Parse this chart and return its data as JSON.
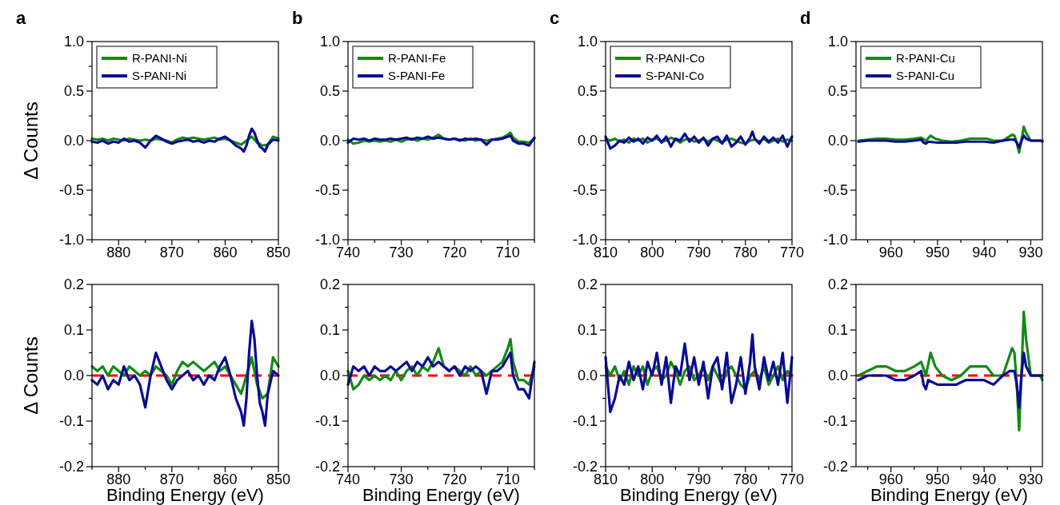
{
  "chart_data": [
    {
      "type": "line",
      "title": "a",
      "ylabel": "Δ Counts",
      "legend": "top left",
      "xlim": [
        885,
        850
      ],
      "xticks": [
        {
          "value": 885,
          "label": null
        },
        880,
        {
          "value": 875,
          "label": null
        },
        870,
        {
          "value": 865,
          "label": null
        },
        860,
        {
          "value": 855,
          "label": null
        },
        850
      ],
      "ylim": [
        -1,
        1
      ],
      "yticks": [
        {
          "value": -1,
          "label": "-1.0"
        },
        {
          "value": -0.75,
          "label": null
        },
        {
          "value": -0.5,
          "label": "-0.5"
        },
        {
          "value": -0.25,
          "label": null
        },
        {
          "value": 0,
          "label": "0.0"
        },
        {
          "value": 0.25,
          "label": null
        },
        {
          "value": 0.5,
          "label": "0.5"
        },
        {
          "value": 0.75,
          "label": null
        },
        {
          "value": 1,
          "label": "1.0"
        }
      ],
      "series": [
        {
          "name": "R-PANI-Ni",
          "color": "#138a13",
          "x": [
            885,
            884,
            883,
            882,
            881,
            880,
            879,
            878,
            877,
            876,
            875,
            874,
            873,
            872,
            871,
            870,
            869,
            868,
            867,
            866,
            865,
            864,
            863,
            862,
            861,
            860,
            859,
            858,
            857,
            856,
            855,
            854,
            853,
            852,
            851,
            850
          ],
          "values": [
            0.02,
            0.01,
            0.02,
            0.0,
            0.02,
            0.01,
            0.0,
            0.02,
            0.01,
            0.0,
            0.01,
            0.0,
            0.02,
            0.01,
            0.0,
            -0.02,
            0.01,
            0.03,
            0.02,
            0.03,
            0.02,
            0.01,
            0.02,
            0.03,
            0.01,
            0.02,
            0.0,
            -0.02,
            -0.04,
            0.0,
            0.04,
            -0.02,
            -0.05,
            -0.04,
            0.04,
            0.02
          ]
        },
        {
          "name": "S-PANI-Ni",
          "color": "#0a0a96",
          "x": [
            885,
            884,
            883,
            882,
            881,
            880,
            879,
            878,
            877,
            876,
            875,
            874,
            873,
            872,
            871,
            870,
            869,
            868,
            867,
            866,
            865,
            864,
            863,
            862,
            861,
            860,
            859,
            858,
            857,
            856.5,
            856,
            855.5,
            855,
            854.5,
            854,
            853.5,
            853,
            852.5,
            852,
            851,
            850
          ],
          "values": [
            -0.01,
            -0.02,
            0.0,
            -0.03,
            -0.01,
            -0.02,
            0.02,
            -0.01,
            0.0,
            -0.02,
            -0.07,
            0.0,
            0.05,
            0.02,
            -0.01,
            -0.03,
            -0.01,
            0.0,
            0.01,
            -0.01,
            0.0,
            -0.02,
            0.0,
            -0.01,
            0.02,
            0.04,
            0.0,
            -0.05,
            -0.08,
            -0.11,
            -0.05,
            0.05,
            0.12,
            0.08,
            0.0,
            -0.06,
            -0.08,
            -0.11,
            -0.04,
            0.01,
            0.0
          ]
        }
      ]
    },
    {
      "type": "line",
      "title": "b",
      "legend": "top left",
      "xlim": [
        740,
        705
      ],
      "xticks": [
        740,
        {
          "value": 735,
          "label": null
        },
        730,
        {
          "value": 725,
          "label": null
        },
        720,
        {
          "value": 715,
          "label": null
        },
        710,
        {
          "value": 705,
          "label": null
        }
      ],
      "ylim": [
        -1,
        1
      ],
      "yticks": [
        {
          "value": -1,
          "label": "-1.0"
        },
        {
          "value": -0.75,
          "label": null
        },
        {
          "value": -0.5,
          "label": "-0.5"
        },
        {
          "value": -0.25,
          "label": null
        },
        {
          "value": 0,
          "label": "0.0"
        },
        {
          "value": 0.25,
          "label": null
        },
        {
          "value": 0.5,
          "label": "0.5"
        },
        {
          "value": 0.75,
          "label": null
        },
        {
          "value": 1,
          "label": "1.0"
        }
      ],
      "series": [
        {
          "name": "R-PANI-Fe",
          "color": "#138a13",
          "x": [
            740,
            739,
            738,
            737,
            736,
            735,
            734,
            733,
            732,
            731,
            730,
            729,
            728,
            727,
            726,
            725,
            724,
            723,
            722,
            721,
            720,
            719,
            718,
            717,
            716,
            715,
            714,
            713,
            712,
            711,
            710,
            709.5,
            709,
            708,
            707,
            706,
            705
          ],
          "values": [
            0.01,
            -0.03,
            -0.02,
            0.0,
            -0.01,
            0.0,
            -0.01,
            0.0,
            -0.01,
            0.01,
            -0.01,
            0.01,
            0.02,
            0.0,
            0.02,
            0.01,
            0.03,
            0.06,
            0.02,
            0.01,
            0.02,
            0.01,
            0.0,
            0.02,
            0.0,
            0.01,
            0.0,
            0.01,
            0.02,
            0.03,
            0.06,
            0.08,
            0.03,
            -0.01,
            -0.01,
            -0.02,
            0.02
          ]
        },
        {
          "name": "S-PANI-Fe",
          "color": "#0a0a96",
          "x": [
            740,
            739,
            738,
            737,
            736,
            735,
            734,
            733,
            732,
            731,
            730,
            729,
            728,
            727,
            726,
            725,
            724,
            723,
            722,
            721,
            720,
            719,
            718,
            717,
            716,
            715,
            714,
            713,
            712,
            711,
            710,
            709.5,
            709,
            708,
            707,
            706,
            705
          ],
          "values": [
            -0.02,
            0.02,
            0.01,
            0.02,
            0.0,
            0.02,
            0.01,
            0.01,
            0.02,
            0.01,
            0.02,
            0.03,
            0.01,
            0.03,
            0.02,
            0.04,
            0.02,
            0.03,
            0.02,
            0.01,
            0.02,
            0.0,
            0.02,
            0.01,
            0.02,
            0.01,
            -0.04,
            0.01,
            0.01,
            0.02,
            0.04,
            0.05,
            0.0,
            -0.03,
            -0.03,
            -0.05,
            0.03
          ]
        }
      ]
    },
    {
      "type": "line",
      "title": "c",
      "legend": "top left",
      "xlim": [
        810,
        770
      ],
      "xticks": [
        810,
        {
          "value": 805,
          "label": null
        },
        800,
        {
          "value": 795,
          "label": null
        },
        790,
        {
          "value": 785,
          "label": null
        },
        780,
        {
          "value": 775,
          "label": null
        },
        770
      ],
      "ylim": [
        -1,
        1
      ],
      "yticks": [
        {
          "value": -1,
          "label": "-1.0"
        },
        {
          "value": -0.75,
          "label": null
        },
        {
          "value": -0.5,
          "label": "-0.5"
        },
        {
          "value": -0.25,
          "label": null
        },
        {
          "value": 0,
          "label": "0.0"
        },
        {
          "value": 0.25,
          "label": null
        },
        {
          "value": 0.5,
          "label": "0.5"
        },
        {
          "value": 0.75,
          "label": null
        },
        {
          "value": 1,
          "label": "1.0"
        }
      ],
      "series": [
        {
          "name": "R-PANI-Co",
          "color": "#138a13",
          "x": [
            810,
            809,
            808,
            807,
            806,
            805,
            804,
            803,
            802,
            801,
            800,
            799,
            798,
            797,
            796,
            795,
            794,
            793,
            792,
            791,
            790,
            789,
            788,
            787,
            786,
            785,
            784,
            783,
            782,
            781,
            780,
            779,
            778,
            777,
            776,
            775,
            774,
            773,
            772,
            771,
            770
          ],
          "values": [
            0.02,
            0.0,
            0.02,
            -0.01,
            0.01,
            -0.02,
            0.02,
            0.0,
            0.02,
            -0.02,
            0.01,
            0.02,
            -0.01,
            0.0,
            0.03,
            0.01,
            -0.02,
            0.01,
            0.02,
            -0.01,
            0.0,
            0.02,
            -0.01,
            0.02,
            0.0,
            -0.02,
            0.01,
            0.02,
            0.0,
            -0.02,
            -0.03,
            0.0,
            0.01,
            -0.01,
            0.02,
            -0.02,
            0.0,
            0.02,
            -0.01,
            0.01,
            0.0
          ]
        },
        {
          "name": "S-PANI-Co",
          "color": "#0a0a96",
          "x": [
            810,
            809,
            808,
            807,
            806,
            805,
            804,
            803,
            802,
            801,
            800,
            799,
            798,
            797,
            796,
            795,
            794,
            793,
            792,
            791,
            790,
            789,
            788,
            787,
            786,
            785,
            784,
            783,
            782,
            781,
            780,
            779,
            778.5,
            778,
            777,
            776,
            775,
            774,
            773,
            772,
            771,
            770
          ],
          "values": [
            0.04,
            -0.08,
            -0.05,
            0.0,
            -0.02,
            0.03,
            -0.01,
            0.02,
            -0.03,
            0.03,
            0.0,
            0.05,
            -0.02,
            0.04,
            -0.06,
            0.02,
            0.0,
            0.07,
            -0.01,
            0.04,
            -0.02,
            0.03,
            -0.05,
            0.02,
            0.04,
            -0.03,
            0.05,
            -0.06,
            -0.02,
            0.04,
            -0.04,
            0.03,
            0.09,
            0.02,
            -0.03,
            0.04,
            -0.01,
            0.03,
            -0.02,
            0.05,
            -0.06,
            0.04
          ]
        }
      ]
    },
    {
      "type": "line",
      "title": "d",
      "legend": "top left",
      "xlim": [
        967.5,
        927.5
      ],
      "xticks": [
        {
          "value": 965,
          "label": null
        },
        960,
        {
          "value": 955,
          "label": null
        },
        950,
        {
          "value": 945,
          "label": null
        },
        940,
        {
          "value": 935,
          "label": null
        },
        930
      ],
      "ylim": [
        -1,
        1
      ],
      "yticks": [
        {
          "value": -1,
          "label": "-1.0"
        },
        {
          "value": -0.75,
          "label": null
        },
        {
          "value": -0.5,
          "label": "-0.5"
        },
        {
          "value": -0.25,
          "label": null
        },
        {
          "value": 0,
          "label": "0.0"
        },
        {
          "value": 0.25,
          "label": null
        },
        {
          "value": 0.5,
          "label": "0.5"
        },
        {
          "value": 0.75,
          "label": null
        },
        {
          "value": 1,
          "label": "1.0"
        }
      ],
      "series": [
        {
          "name": "R-PANI-Cu",
          "color": "#138a13",
          "x": [
            967,
            965,
            963,
            961,
            959,
            957,
            955,
            953.5,
            952.5,
            951.5,
            950.5,
            949,
            947,
            945,
            943,
            941,
            939.5,
            938,
            936,
            935,
            934,
            933.5,
            933,
            932.5,
            932,
            931.5,
            931,
            930,
            928,
            927.5
          ],
          "values": [
            0.0,
            0.01,
            0.02,
            0.02,
            0.01,
            0.01,
            0.02,
            0.03,
            0.0,
            0.05,
            0.02,
            0.0,
            -0.01,
            0.0,
            0.02,
            0.02,
            0.02,
            0.0,
            0.0,
            0.03,
            0.06,
            0.05,
            -0.02,
            -0.12,
            0.0,
            0.14,
            0.08,
            0.0,
            0.0,
            -0.01
          ]
        },
        {
          "name": "S-PANI-Cu",
          "color": "#0a0a96",
          "x": [
            967,
            965,
            963,
            961,
            959,
            957,
            955,
            953.5,
            953,
            952.5,
            952,
            950,
            948,
            946,
            944,
            942,
            940,
            938,
            936,
            934.5,
            933.5,
            933,
            932.5,
            932,
            931.5,
            931,
            930,
            928,
            927.5
          ],
          "values": [
            -0.01,
            0.0,
            0.0,
            0.0,
            -0.01,
            -0.01,
            0.0,
            0.01,
            -0.02,
            -0.03,
            -0.01,
            -0.02,
            -0.02,
            -0.02,
            -0.01,
            -0.01,
            -0.01,
            -0.02,
            0.0,
            0.01,
            0.01,
            -0.02,
            -0.07,
            0.0,
            0.05,
            0.02,
            0.0,
            0.0,
            0.0
          ]
        }
      ]
    },
    {
      "type": "line",
      "ylabel": "Δ Counts",
      "xlabel": "Binding Energy (eV)",
      "xlim": [
        885,
        850
      ],
      "xticks": [
        {
          "value": 885,
          "label": null
        },
        880,
        {
          "value": 875,
          "label": null
        },
        870,
        {
          "value": 865,
          "label": null
        },
        860,
        {
          "value": 855,
          "label": null
        },
        850
      ],
      "ylim": [
        -0.2,
        0.2
      ],
      "yticks": [
        -0.2,
        {
          "value": -0.15,
          "label": null
        },
        -0.1,
        {
          "value": -0.05,
          "label": null
        },
        {
          "value": 0,
          "label": "0.0"
        },
        {
          "value": 0.05,
          "label": null
        },
        0.1,
        {
          "value": 0.15,
          "label": null
        },
        0.2
      ],
      "ref_lines": [
        {
          "axis": "y",
          "value": 0,
          "color": "#ff0000",
          "line_style": "dashed"
        }
      ],
      "series": [
        {
          "color": "#138a13",
          "x": [
            885,
            884,
            883,
            882,
            881,
            880,
            879,
            878,
            877,
            876,
            875,
            874,
            873,
            872,
            871,
            870,
            869,
            868,
            867,
            866,
            865,
            864,
            863,
            862,
            861,
            860,
            859,
            858,
            857,
            856,
            855,
            854,
            853,
            852,
            851,
            850
          ],
          "values": [
            0.02,
            0.01,
            0.02,
            0.0,
            0.02,
            0.01,
            0.0,
            0.02,
            0.01,
            0.0,
            0.01,
            0.0,
            0.02,
            0.01,
            0.0,
            -0.02,
            0.01,
            0.03,
            0.02,
            0.03,
            0.02,
            0.01,
            0.02,
            0.03,
            0.01,
            0.02,
            0.0,
            -0.02,
            -0.04,
            0.0,
            0.04,
            -0.02,
            -0.05,
            -0.04,
            0.04,
            0.02
          ]
        },
        {
          "color": "#0a0a96",
          "x": [
            885,
            884,
            883,
            882,
            881,
            880,
            879,
            878,
            877,
            876,
            875,
            874,
            873,
            872,
            871,
            870,
            869,
            868,
            867,
            866,
            865,
            864,
            863,
            862,
            861,
            860,
            859,
            858,
            857,
            856.5,
            856,
            855.5,
            855,
            854.5,
            854,
            853.5,
            853,
            852.5,
            852,
            851,
            850
          ],
          "values": [
            -0.01,
            -0.02,
            0.0,
            -0.03,
            -0.01,
            -0.02,
            0.02,
            -0.01,
            0.0,
            -0.02,
            -0.07,
            0.0,
            0.05,
            0.02,
            -0.01,
            -0.03,
            -0.01,
            0.0,
            0.01,
            -0.01,
            0.0,
            -0.02,
            0.0,
            -0.01,
            0.02,
            0.04,
            0.0,
            -0.05,
            -0.08,
            -0.11,
            -0.05,
            0.05,
            0.12,
            0.08,
            0.0,
            -0.06,
            -0.08,
            -0.11,
            -0.04,
            0.01,
            0.0
          ]
        }
      ]
    },
    {
      "type": "line",
      "xlabel": "Binding Energy (eV)",
      "xlim": [
        740,
        705
      ],
      "xticks": [
        740,
        {
          "value": 735,
          "label": null
        },
        730,
        {
          "value": 725,
          "label": null
        },
        720,
        {
          "value": 715,
          "label": null
        },
        710,
        {
          "value": 705,
          "label": null
        }
      ],
      "ylim": [
        -0.2,
        0.2
      ],
      "yticks": [
        -0.2,
        {
          "value": -0.15,
          "label": null
        },
        -0.1,
        {
          "value": -0.05,
          "label": null
        },
        {
          "value": 0,
          "label": "0.0"
        },
        {
          "value": 0.05,
          "label": null
        },
        0.1,
        {
          "value": 0.15,
          "label": null
        },
        0.2
      ],
      "ref_lines": [
        {
          "axis": "y",
          "value": 0,
          "color": "#ff0000",
          "line_style": "dashed"
        }
      ],
      "series": [
        {
          "color": "#138a13",
          "x": [
            740,
            739,
            738,
            737,
            736,
            735,
            734,
            733,
            732,
            731,
            730,
            729,
            728,
            727,
            726,
            725,
            724,
            723,
            722,
            721,
            720,
            719,
            718,
            717,
            716,
            715,
            714,
            713,
            712,
            711,
            710,
            709.5,
            709,
            708,
            707,
            706,
            705
          ],
          "values": [
            0.01,
            -0.03,
            -0.02,
            0.0,
            -0.01,
            0.0,
            -0.01,
            0.0,
            -0.01,
            0.01,
            -0.01,
            0.01,
            0.02,
            0.0,
            0.02,
            0.01,
            0.03,
            0.06,
            0.02,
            0.01,
            0.02,
            0.01,
            0.0,
            0.02,
            0.0,
            0.01,
            0.0,
            0.01,
            0.02,
            0.03,
            0.06,
            0.08,
            0.03,
            -0.01,
            -0.01,
            -0.02,
            0.02
          ]
        },
        {
          "color": "#0a0a96",
          "x": [
            740,
            739,
            738,
            737,
            736,
            735,
            734,
            733,
            732,
            731,
            730,
            729,
            728,
            727,
            726,
            725,
            724,
            723,
            722,
            721,
            720,
            719,
            718,
            717,
            716,
            715,
            714,
            713,
            712,
            711,
            710,
            709.5,
            709,
            708,
            707,
            706,
            705
          ],
          "values": [
            -0.02,
            0.02,
            0.01,
            0.02,
            0.0,
            0.02,
            0.01,
            0.01,
            0.02,
            0.01,
            0.02,
            0.03,
            0.01,
            0.03,
            0.02,
            0.04,
            0.02,
            0.03,
            0.02,
            0.01,
            0.02,
            0.0,
            0.02,
            0.01,
            0.02,
            0.01,
            -0.04,
            0.01,
            0.01,
            0.02,
            0.04,
            0.05,
            0.0,
            -0.03,
            -0.03,
            -0.05,
            0.03
          ]
        }
      ]
    },
    {
      "type": "line",
      "xlabel": "Binding Energy (eV)",
      "xlim": [
        810,
        770
      ],
      "xticks": [
        810,
        {
          "value": 805,
          "label": null
        },
        800,
        {
          "value": 795,
          "label": null
        },
        790,
        {
          "value": 785,
          "label": null
        },
        780,
        {
          "value": 775,
          "label": null
        },
        770
      ],
      "ylim": [
        -0.2,
        0.2
      ],
      "yticks": [
        -0.2,
        {
          "value": -0.15,
          "label": null
        },
        -0.1,
        {
          "value": -0.05,
          "label": null
        },
        {
          "value": 0,
          "label": "0.0"
        },
        {
          "value": 0.05,
          "label": null
        },
        0.1,
        {
          "value": 0.15,
          "label": null
        },
        0.2
      ],
      "ref_lines": [
        {
          "axis": "y",
          "value": 0,
          "color": "#ff0000",
          "line_style": "dashed"
        }
      ],
      "series": [
        {
          "color": "#138a13",
          "x": [
            810,
            809,
            808,
            807,
            806,
            805,
            804,
            803,
            802,
            801,
            800,
            799,
            798,
            797,
            796,
            795,
            794,
            793,
            792,
            791,
            790,
            789,
            788,
            787,
            786,
            785,
            784,
            783,
            782,
            781,
            780,
            779,
            778,
            777,
            776,
            775,
            774,
            773,
            772,
            771,
            770
          ],
          "values": [
            0.02,
            0.0,
            0.02,
            -0.01,
            0.01,
            -0.02,
            0.02,
            0.0,
            0.02,
            -0.02,
            0.01,
            0.02,
            -0.01,
            0.0,
            0.03,
            0.01,
            -0.02,
            0.01,
            0.02,
            -0.01,
            0.0,
            0.02,
            -0.01,
            0.02,
            0.0,
            -0.02,
            0.01,
            0.02,
            0.0,
            -0.02,
            -0.03,
            0.0,
            0.01,
            -0.01,
            0.02,
            -0.02,
            0.0,
            0.02,
            -0.01,
            0.01,
            0.0
          ]
        },
        {
          "color": "#0a0a96",
          "x": [
            810,
            809,
            808,
            807,
            806,
            805,
            804,
            803,
            802,
            801,
            800,
            799,
            798,
            797,
            796,
            795,
            794,
            793,
            792,
            791,
            790,
            789,
            788,
            787,
            786,
            785,
            784,
            783,
            782,
            781,
            780,
            779,
            778.5,
            778,
            777,
            776,
            775,
            774,
            773,
            772,
            771,
            770
          ],
          "values": [
            0.04,
            -0.08,
            -0.05,
            0.0,
            -0.02,
            0.03,
            -0.01,
            0.02,
            -0.03,
            0.03,
            0.0,
            0.05,
            -0.02,
            0.04,
            -0.06,
            0.02,
            0.0,
            0.07,
            -0.01,
            0.04,
            -0.02,
            0.03,
            -0.05,
            0.02,
            0.04,
            -0.03,
            0.05,
            -0.06,
            -0.02,
            0.04,
            -0.04,
            0.03,
            0.09,
            0.02,
            -0.03,
            0.04,
            -0.01,
            0.03,
            -0.02,
            0.05,
            -0.06,
            0.04
          ]
        }
      ]
    },
    {
      "type": "line",
      "xlabel": "Binding Energy (eV)",
      "xlim": [
        967.5,
        927.5
      ],
      "xticks": [
        {
          "value": 965,
          "label": null
        },
        960,
        {
          "value": 955,
          "label": null
        },
        950,
        {
          "value": 945,
          "label": null
        },
        940,
        {
          "value": 935,
          "label": null
        },
        930
      ],
      "ylim": [
        -0.2,
        0.2
      ],
      "yticks": [
        -0.2,
        {
          "value": -0.15,
          "label": null
        },
        -0.1,
        {
          "value": -0.05,
          "label": null
        },
        {
          "value": 0,
          "label": "0.0"
        },
        {
          "value": 0.05,
          "label": null
        },
        0.1,
        {
          "value": 0.15,
          "label": null
        },
        0.2
      ],
      "ref_lines": [
        {
          "axis": "y",
          "value": 0,
          "color": "#ff0000",
          "line_style": "dashed"
        }
      ],
      "series": [
        {
          "color": "#138a13",
          "x": [
            967,
            965,
            963,
            961,
            959,
            957,
            955,
            953.5,
            952.5,
            951.5,
            950.5,
            949,
            947,
            945,
            943,
            941,
            939.5,
            938,
            936,
            935,
            934,
            933.5,
            933,
            932.5,
            932,
            931.5,
            931,
            930,
            928,
            927.5
          ],
          "values": [
            0.0,
            0.01,
            0.02,
            0.02,
            0.01,
            0.01,
            0.02,
            0.03,
            0.0,
            0.05,
            0.02,
            0.0,
            -0.01,
            0.0,
            0.02,
            0.02,
            0.02,
            0.0,
            0.0,
            0.03,
            0.06,
            0.05,
            -0.02,
            -0.12,
            0.0,
            0.14,
            0.08,
            0.0,
            0.0,
            -0.01
          ]
        },
        {
          "color": "#0a0a96",
          "x": [
            967,
            965,
            963,
            961,
            959,
            957,
            955,
            953.5,
            953,
            952.5,
            952,
            950,
            948,
            946,
            944,
            942,
            940,
            938,
            936,
            934.5,
            933.5,
            933,
            932.5,
            932,
            931.5,
            931,
            930,
            928,
            927.5
          ],
          "values": [
            -0.01,
            0.0,
            0.0,
            0.0,
            -0.01,
            -0.01,
            0.0,
            0.01,
            -0.02,
            -0.03,
            -0.01,
            -0.02,
            -0.02,
            -0.02,
            -0.01,
            -0.01,
            -0.01,
            -0.02,
            0.0,
            0.01,
            0.01,
            -0.02,
            -0.07,
            0.0,
            0.05,
            0.02,
            0.0,
            0.0,
            0.0
          ]
        }
      ]
    }
  ]
}
